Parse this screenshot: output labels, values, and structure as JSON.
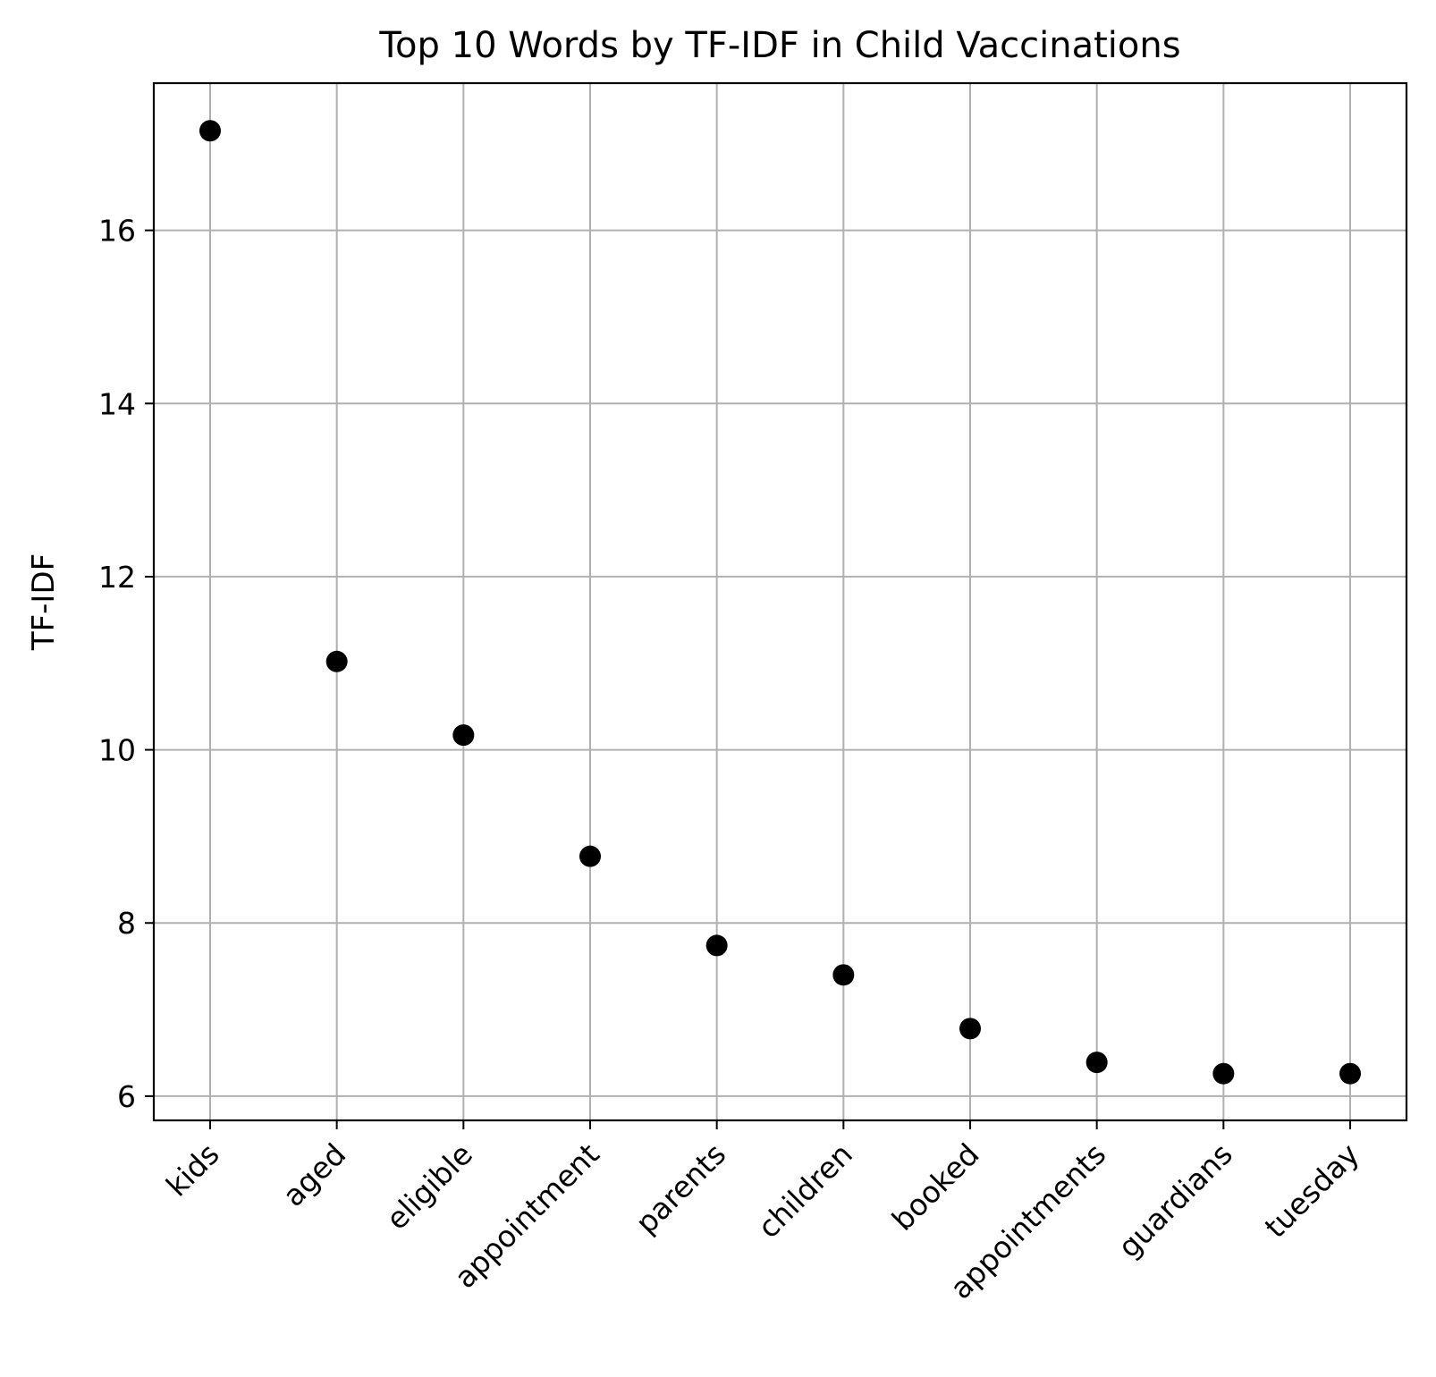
{
  "chart_data": {
    "type": "scatter",
    "title": "Top 10 Words by TF-IDF in Child Vaccinations",
    "xlabel": "",
    "ylabel": "TF-IDF",
    "categories": [
      "kids",
      "aged",
      "eligible",
      "appointment",
      "parents",
      "children",
      "booked",
      "appointments",
      "guardians",
      "tuesday"
    ],
    "values": [
      17.15,
      11.02,
      10.17,
      8.77,
      7.74,
      7.4,
      6.78,
      6.39,
      6.26,
      6.26
    ],
    "yticks": [
      6,
      8,
      10,
      12,
      14,
      16
    ],
    "ylim": [
      5.72,
      17.7
    ],
    "grid": true,
    "marker_color": "#000000",
    "grid_color": "#b0b0b0"
  }
}
